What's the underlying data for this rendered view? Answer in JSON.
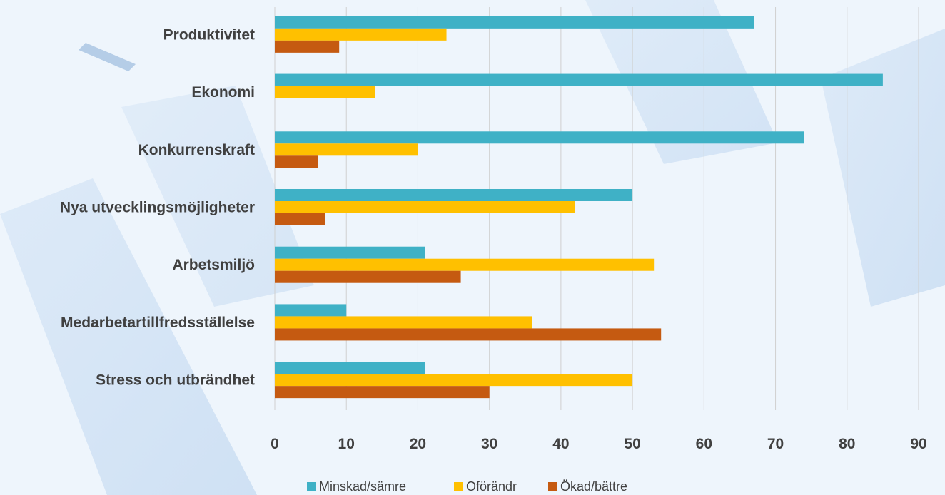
{
  "chart_data": {
    "type": "bar",
    "orientation": "horizontal",
    "title": "",
    "xlabel": "",
    "ylabel": "",
    "categories": [
      "Produktivitet",
      "Ekonomi",
      "Konkurrenskraft",
      "Nya utvecklingsmöjligheter",
      "Arbetsmiljö",
      "Medarbetartillfredsställelse",
      "Stress och utbrändhet"
    ],
    "series": [
      {
        "name": "Minskad/sämre",
        "color": "#3fb1c6",
        "values": [
          67,
          85,
          74,
          50,
          21,
          10,
          21
        ]
      },
      {
        "name": "Oförändr",
        "color": "#ffc000",
        "values": [
          24,
          14,
          20,
          42,
          53,
          36,
          50
        ]
      },
      {
        "name": "Ökad/bättre",
        "color": "#c55a11",
        "values": [
          9,
          0,
          6,
          7,
          26,
          54,
          30
        ]
      }
    ],
    "xlim": [
      0,
      90
    ],
    "xticks": [
      "0",
      "10",
      "20",
      "30",
      "40",
      "50",
      "60",
      "70",
      "80",
      "90"
    ],
    "grid": true,
    "legend_position": "bottom"
  }
}
